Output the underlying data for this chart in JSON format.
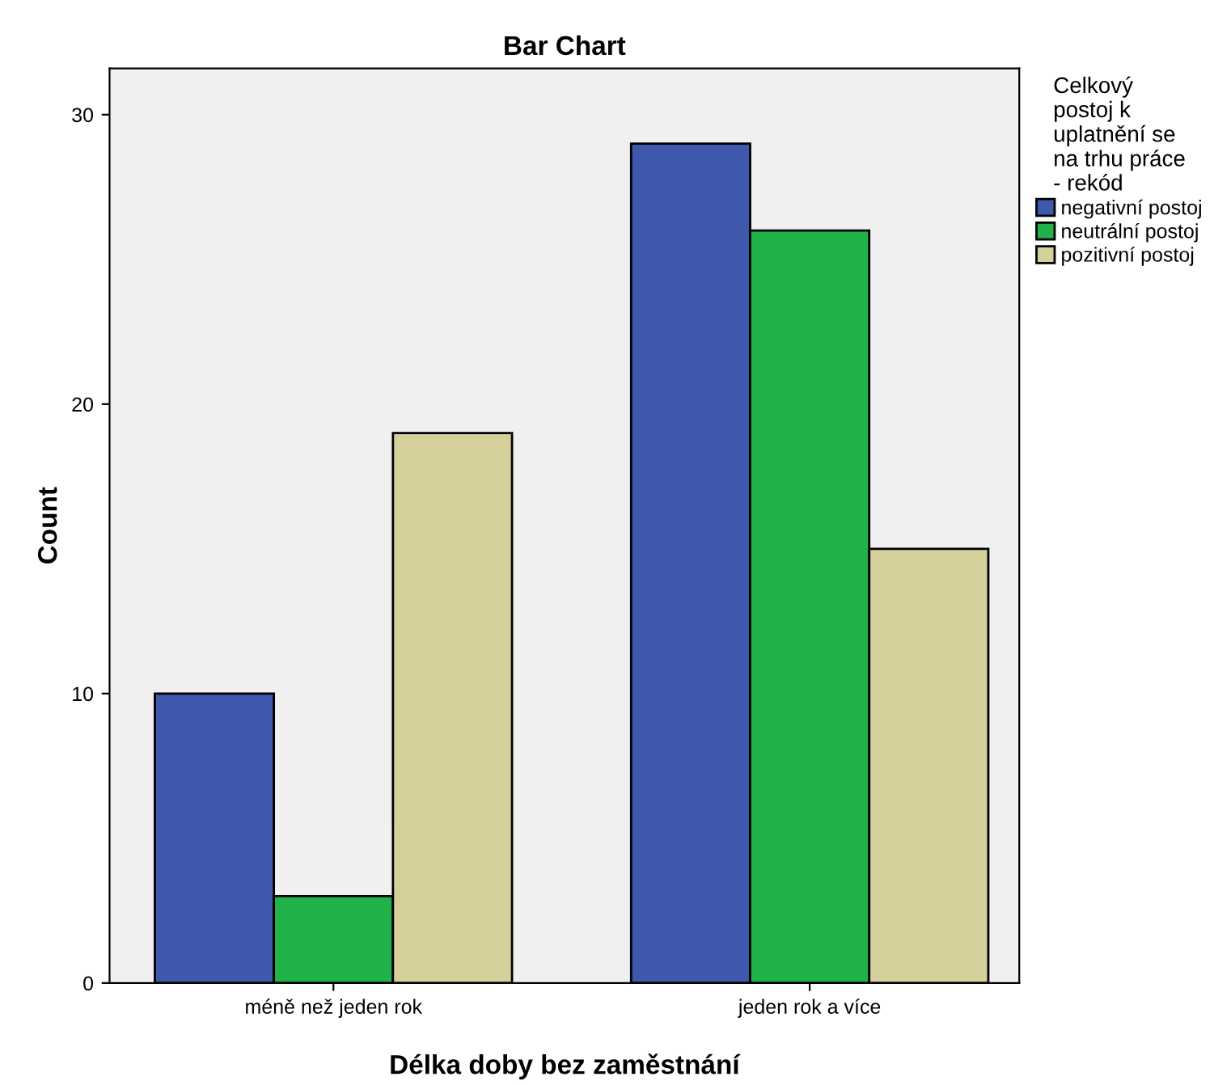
{
  "chart_data": {
    "type": "bar",
    "title": "Bar Chart",
    "xlabel": "Délka doby bez zaměstnání",
    "ylabel": "Count",
    "legend_title": "Celkový\npostoj k\nuplatnění se\nna trhu práce\n- rekód",
    "categories": [
      "méně než jeden rok",
      "jeden rok a více"
    ],
    "series": [
      {
        "name": "negativní postoj",
        "color": "#3e58ac",
        "values": [
          10,
          29
        ]
      },
      {
        "name": "neutrální postoj",
        "color": "#21b24a",
        "values": [
          3,
          26
        ]
      },
      {
        "name": "pozitivní postoj",
        "color": "#d5d09a",
        "values": [
          19,
          15
        ]
      }
    ],
    "ylim": [
      0,
      31.6
    ],
    "yticks": [
      0,
      10,
      20,
      30
    ],
    "grid": false,
    "legend": "right"
  }
}
